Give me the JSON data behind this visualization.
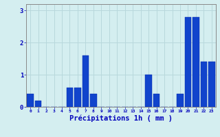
{
  "hours": [
    0,
    1,
    2,
    3,
    4,
    5,
    6,
    7,
    8,
    9,
    10,
    11,
    12,
    13,
    14,
    15,
    16,
    17,
    18,
    19,
    20,
    21,
    22,
    23
  ],
  "values": [
    0.4,
    0.2,
    0.0,
    0.0,
    0.0,
    0.6,
    0.6,
    1.6,
    0.4,
    0.0,
    0.0,
    0.0,
    0.0,
    0.0,
    0.0,
    1.0,
    0.4,
    0.0,
    0.0,
    0.4,
    2.8,
    2.8,
    1.4,
    1.4
  ],
  "bar_color": "#1144cc",
  "bar_edge_color": "#0022aa",
  "background_color": "#d4eef0",
  "grid_color": "#b8d8dc",
  "xlabel": "Précipitations 1h ( mm )",
  "xlabel_color": "#0000bb",
  "tick_color": "#0000bb",
  "axis_color": "#888888",
  "ylim": [
    0,
    3.2
  ],
  "yticks": [
    0,
    1,
    2,
    3
  ],
  "xlabel_fontsize": 7.5
}
